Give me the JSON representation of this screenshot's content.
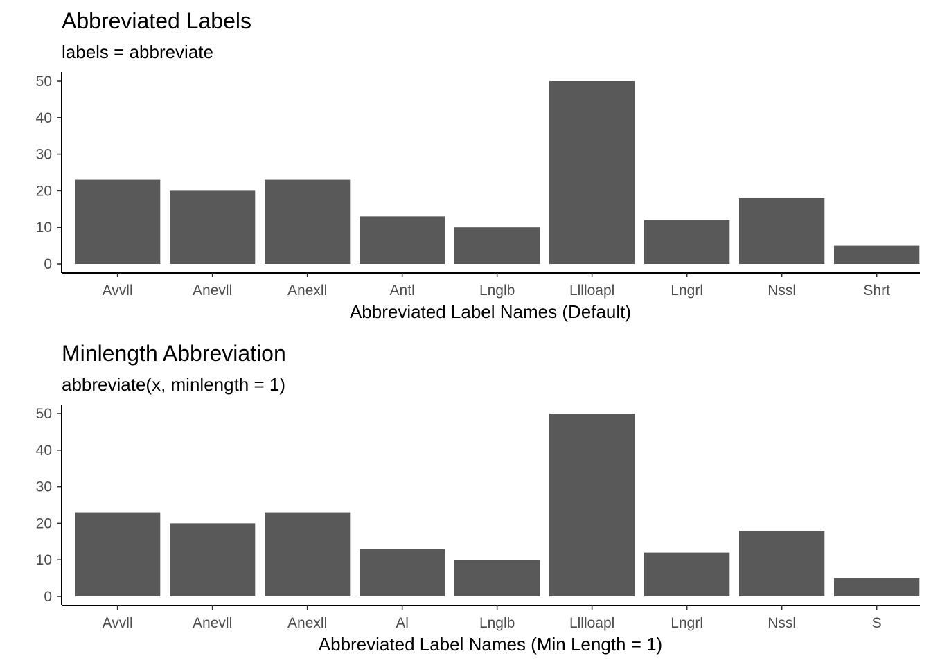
{
  "chart_data": [
    {
      "type": "bar",
      "title": "Abbreviated Labels",
      "subtitle": "labels = abbreviate",
      "xlabel": "Abbreviated Label Names (Default)",
      "ylabel": "",
      "categories": [
        "Avvll",
        "Anevll",
        "Anexll",
        "Antl",
        "Lnglb",
        "Lllloapl",
        "Lngrl",
        "Nssl",
        "Shrt"
      ],
      "values": [
        23,
        20,
        23,
        13,
        10,
        50,
        12,
        18,
        5
      ],
      "ylim": [
        0,
        50
      ],
      "yticks": [
        0,
        10,
        20,
        30,
        40,
        50
      ],
      "bar_color": "#595959",
      "grid": false,
      "legend": "none"
    },
    {
      "type": "bar",
      "title": "Minlength Abbreviation",
      "subtitle": "abbreviate(x, minlength = 1)",
      "xlabel": "Abbreviated Label Names (Min Length = 1)",
      "ylabel": "",
      "categories": [
        "Avvll",
        "Anevll",
        "Anexll",
        "Al",
        "Lnglb",
        "Lllloapl",
        "Lngrl",
        "Nssl",
        "S"
      ],
      "values": [
        23,
        20,
        23,
        13,
        10,
        50,
        12,
        18,
        5
      ],
      "ylim": [
        0,
        50
      ],
      "yticks": [
        0,
        10,
        20,
        30,
        40,
        50
      ],
      "bar_color": "#595959",
      "grid": false,
      "legend": "none"
    }
  ]
}
